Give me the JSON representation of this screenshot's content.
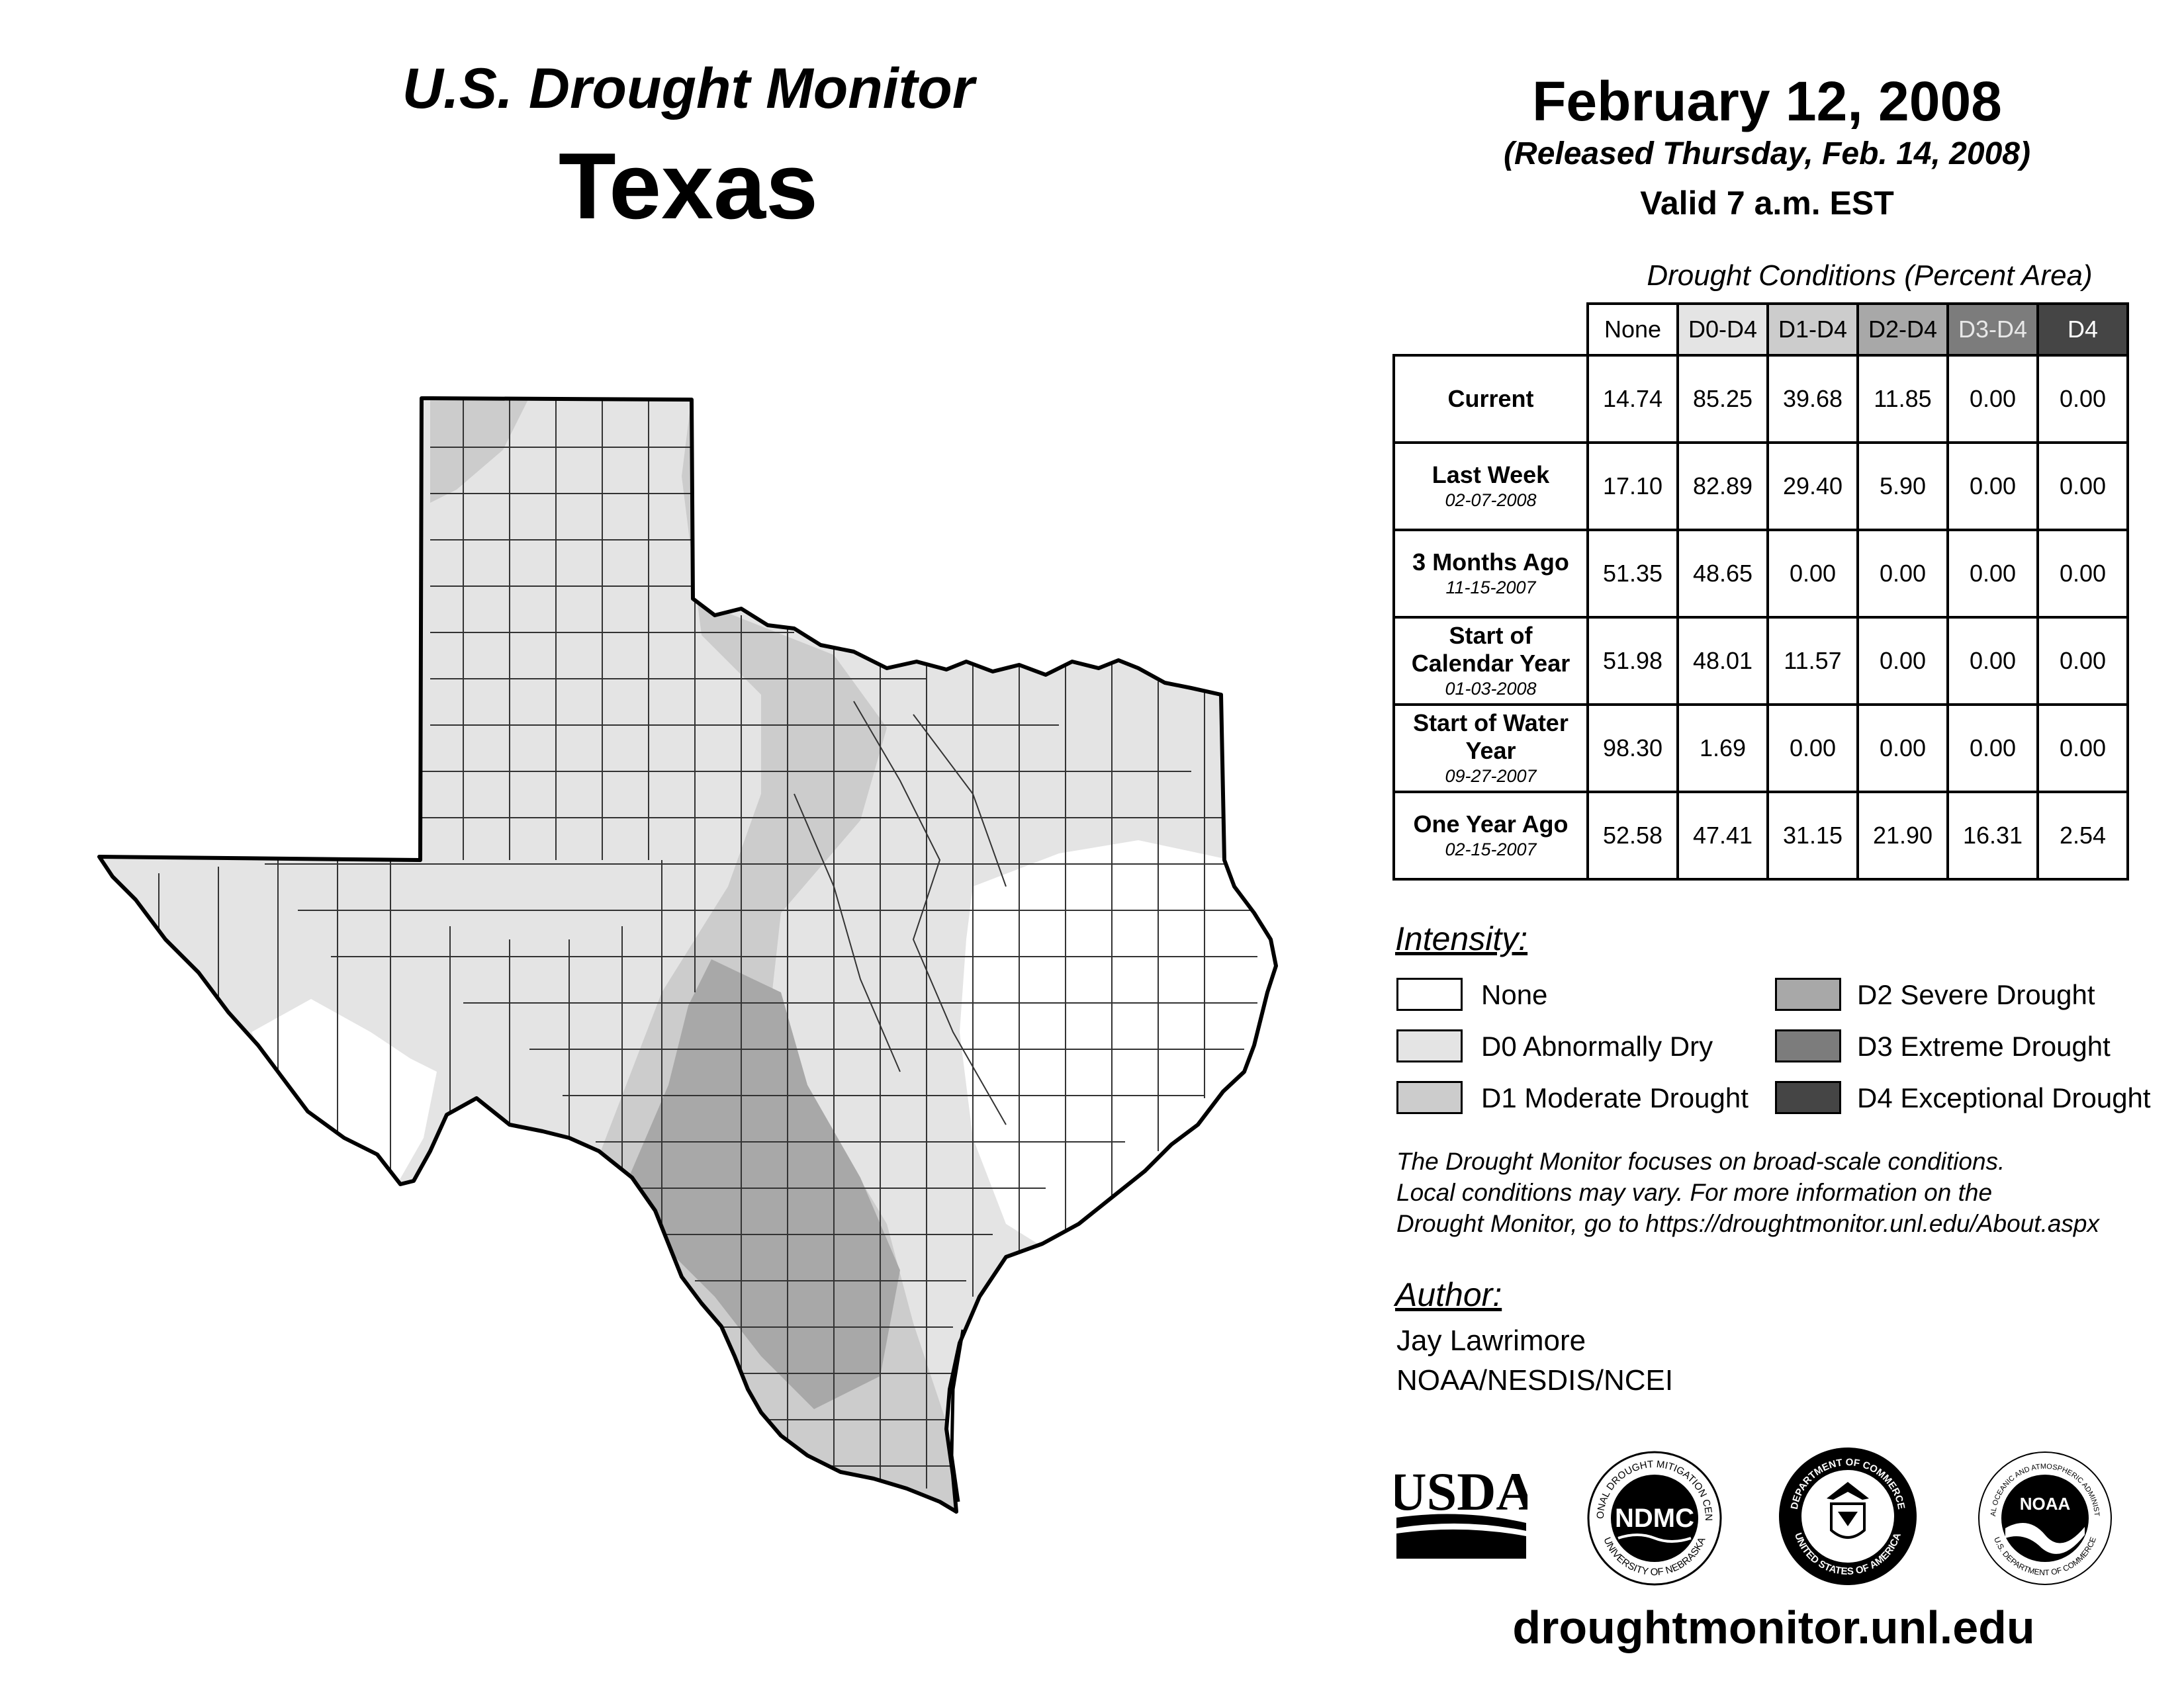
{
  "header": {
    "title": "U.S. Drought Monitor",
    "state": "Texas",
    "date": "February 12, 2008",
    "released": "(Released Thursday, Feb. 14, 2008)",
    "valid": "Valid 7 a.m. EST"
  },
  "table": {
    "caption": "Drought Conditions (Percent Area)",
    "columns": [
      "None",
      "D0-D4",
      "D1-D4",
      "D2-D4",
      "D3-D4",
      "D4"
    ],
    "rows": [
      {
        "label": "Current",
        "sub": "",
        "values": [
          "14.74",
          "85.25",
          "39.68",
          "11.85",
          "0.00",
          "0.00"
        ]
      },
      {
        "label": "Last Week",
        "sub": "02-07-2008",
        "values": [
          "17.10",
          "82.89",
          "29.40",
          "5.90",
          "0.00",
          "0.00"
        ]
      },
      {
        "label": "3 Months Ago",
        "sub": "11-15-2007",
        "values": [
          "51.35",
          "48.65",
          "0.00",
          "0.00",
          "0.00",
          "0.00"
        ]
      },
      {
        "label": "Start of Calendar Year",
        "sub": "01-03-2008",
        "values": [
          "51.98",
          "48.01",
          "11.57",
          "0.00",
          "0.00",
          "0.00"
        ]
      },
      {
        "label": "Start of Water Year",
        "sub": "09-27-2007",
        "values": [
          "98.30",
          "1.69",
          "0.00",
          "0.00",
          "0.00",
          "0.00"
        ]
      },
      {
        "label": "One Year Ago",
        "sub": "02-15-2007",
        "values": [
          "52.58",
          "47.41",
          "31.15",
          "21.90",
          "16.31",
          "2.54"
        ]
      }
    ]
  },
  "legend": {
    "heading": "Intensity:",
    "items": [
      {
        "label": "None",
        "color": "#ffffff"
      },
      {
        "label": "D0 Abnormally Dry",
        "color": "#e4e4e4"
      },
      {
        "label": "D1 Moderate Drought",
        "color": "#cccccc"
      },
      {
        "label": "D2 Severe Drought",
        "color": "#a8a8a8"
      },
      {
        "label": "D3 Extreme Drought",
        "color": "#7c7c7c"
      },
      {
        "label": "D4 Exceptional Drought",
        "color": "#454545"
      }
    ]
  },
  "note": {
    "line1": "The Drought Monitor focuses on broad-scale conditions.",
    "line2": "Local conditions may vary. For more information on the",
    "line3": "Drought Monitor, go to https://droughtmonitor.unl.edu/About.aspx"
  },
  "author": {
    "heading": "Author:",
    "name": "Jay Lawrimore",
    "org": "NOAA/NESDIS/NCEI"
  },
  "logos": {
    "usda": "USDA",
    "ndmc": "NDMC",
    "ndmc_ring_top": "NATIONAL DROUGHT MITIGATION CENTER",
    "ndmc_ring_bottom": "UNIVERSITY OF NEBRASKA",
    "doc_ring_top": "DEPARTMENT OF COMMERCE",
    "doc_ring_bottom": "UNITED STATES OF AMERICA",
    "noaa": "NOAA",
    "noaa_ring_top": "NATIONAL OCEANIC AND ATMOSPHERIC ADMINISTRATION",
    "noaa_ring_bottom": "U.S. DEPARTMENT OF COMMERCE"
  },
  "footer": {
    "url": "droughtmonitor.unl.edu"
  },
  "map_colors": {
    "none": "#ffffff",
    "d0": "#e4e4e4",
    "d1": "#cccccc",
    "d2": "#a8a8a8",
    "border": "#000000",
    "county_lines": "#333333"
  }
}
